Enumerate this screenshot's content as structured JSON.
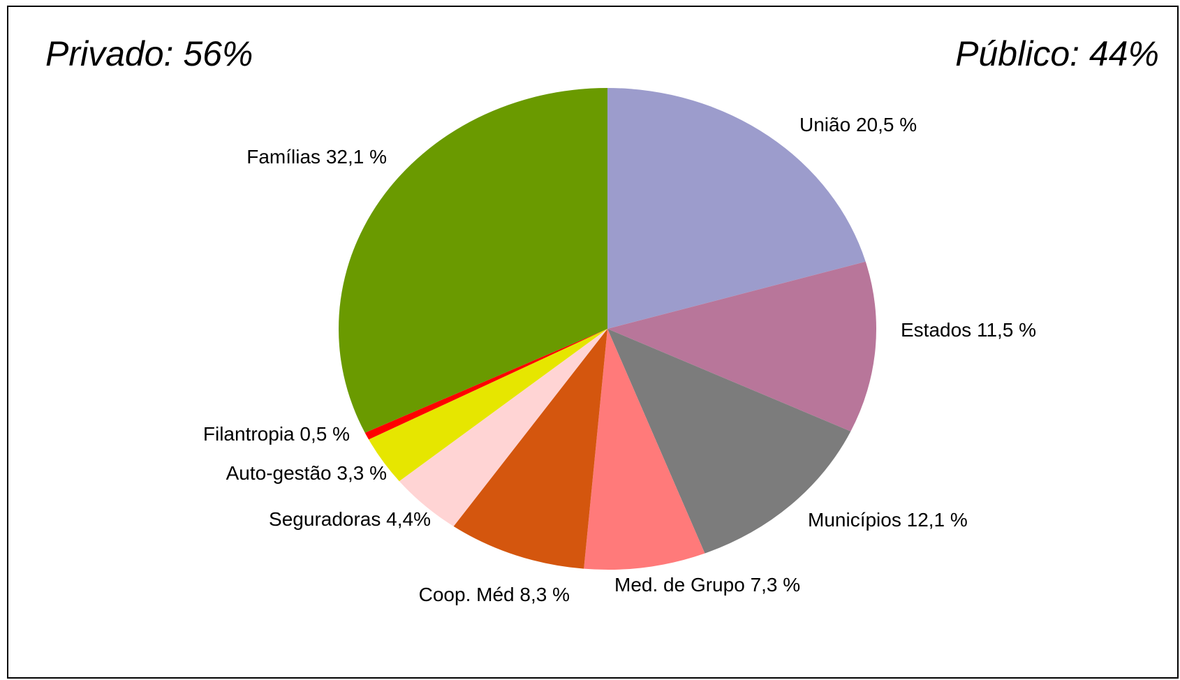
{
  "chart_data": {
    "type": "pie",
    "annotations": [
      "Privado: 56%",
      "Público: 44%"
    ],
    "categories": [
      "União",
      "Estados",
      "Municípios",
      "Med. de Grupo",
      "Coop. Méd",
      "Seguradoras",
      "Auto-gestão",
      "Filantropia",
      "Famílias"
    ],
    "values": [
      20.5,
      11.5,
      12.1,
      7.3,
      8.3,
      4.4,
      3.3,
      0.5,
      32.1
    ],
    "value_labels": [
      "20,5 %",
      "11,5 %",
      "12,1 %",
      "7,3 %",
      "8,3 %",
      "4,4%",
      "3,3 %",
      "0,5 %",
      "32,1 %"
    ],
    "colors": [
      "#9c9ccc",
      "#b8769a",
      "#7c7c7c",
      "#ff7a7a",
      "#d4560e",
      "#ffd4d4",
      "#e6e600",
      "#ff0000",
      "#6a9a00"
    ]
  }
}
